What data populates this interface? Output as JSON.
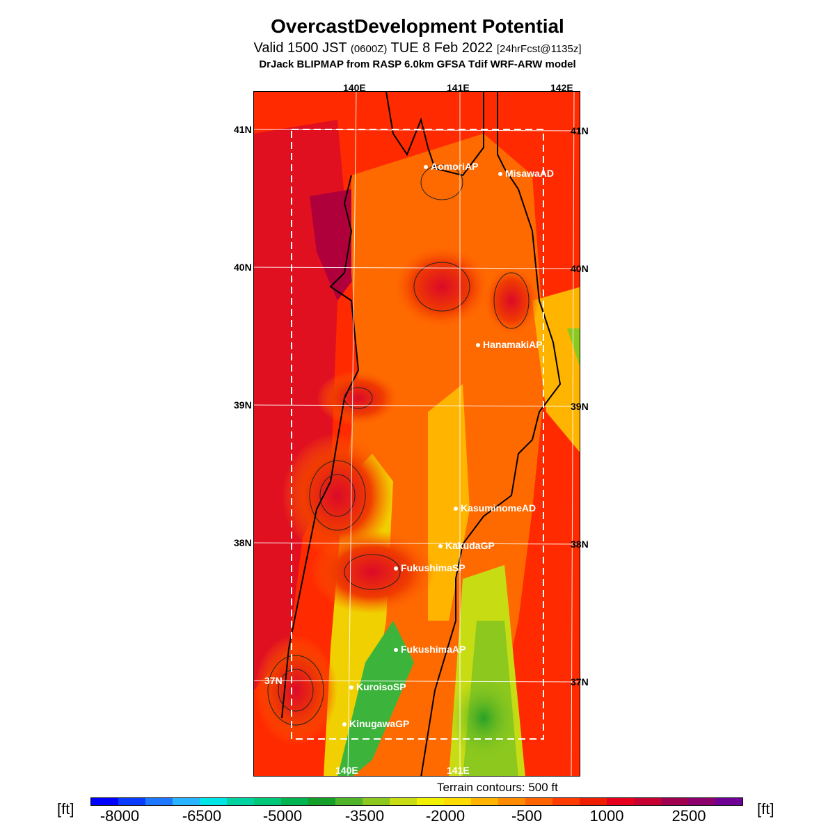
{
  "header": {
    "title": "OvercastDevelopment Potential",
    "valid_a": "Valid 1500 JST ",
    "valid_utc": "(0600Z)",
    "valid_b": " TUE 8 Feb 2022 ",
    "forecast": "[24hrFcst@1135z]",
    "model": "DrJack BLIPMAP from RASP 6.0km GFSA Tdif WRF-ARW model"
  },
  "map": {
    "lon_labels": [
      "140E",
      "141E",
      "142E"
    ],
    "lat_labels": [
      "41N",
      "40N",
      "39N",
      "38N",
      "37N"
    ],
    "stations": [
      "AomoriAP",
      "MisawaAD",
      "HanamakiAP",
      "KasuminomeAD",
      "KakudaGP",
      "FukushimaSP",
      "FukushimaAP",
      "KuroisoSP",
      "KinugawaGP"
    ]
  },
  "footer": {
    "terrain_note": "Terrain contours: 500 ft",
    "unit": "[ft]",
    "ticks": [
      "-8000",
      "-6500",
      "-5000",
      "-3500",
      "-2000",
      "-500",
      "1000",
      "2500"
    ],
    "colors": [
      "#0000ff",
      "#0a3cff",
      "#1e78ff",
      "#28b4ff",
      "#00e6e6",
      "#00d2a0",
      "#00c878",
      "#00b450",
      "#14a028",
      "#50b428",
      "#8cc81e",
      "#c8dc14",
      "#f0f000",
      "#ffdc00",
      "#ffb400",
      "#ff8c00",
      "#ff6400",
      "#ff3c00",
      "#f01e00",
      "#e6001e",
      "#c80032",
      "#a00050",
      "#8c006e",
      "#6e0096"
    ]
  }
}
